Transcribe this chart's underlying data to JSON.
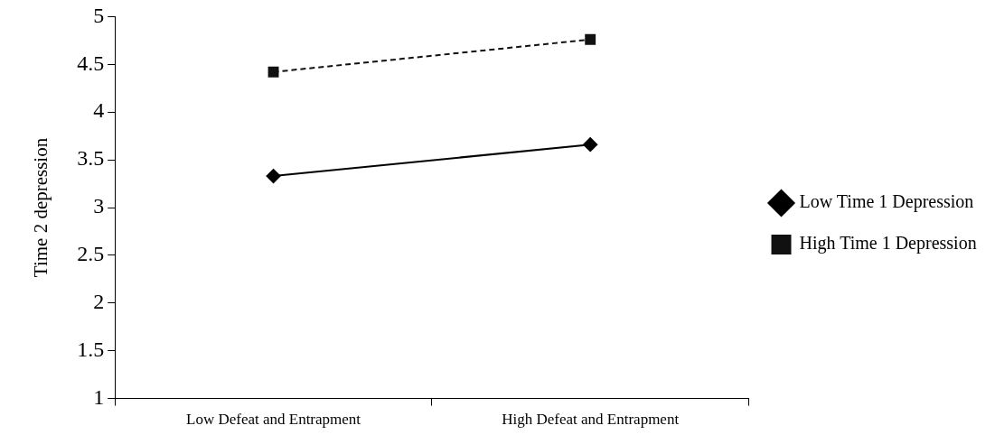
{
  "chart_data": {
    "type": "line",
    "ylabel": "Time 2 depression",
    "categories": [
      "Low Defeat and Entrapment",
      "High Defeat and Entrapment"
    ],
    "series": [
      {
        "name": "Low Time 1 Depression",
        "color": "#000000",
        "values": [
          3.33,
          3.66
        ],
        "marker": "diamond",
        "line_style": "solid"
      },
      {
        "name": "High Time 1 Depression",
        "color": "#111111",
        "values": [
          4.42,
          4.76
        ],
        "marker": "square",
        "line_style": "dashed"
      }
    ],
    "ylim": [
      1,
      5
    ],
    "yticks": [
      1,
      1.5,
      2,
      2.5,
      3,
      3.5,
      4,
      4.5,
      5
    ],
    "grid": false,
    "legend": "right"
  }
}
